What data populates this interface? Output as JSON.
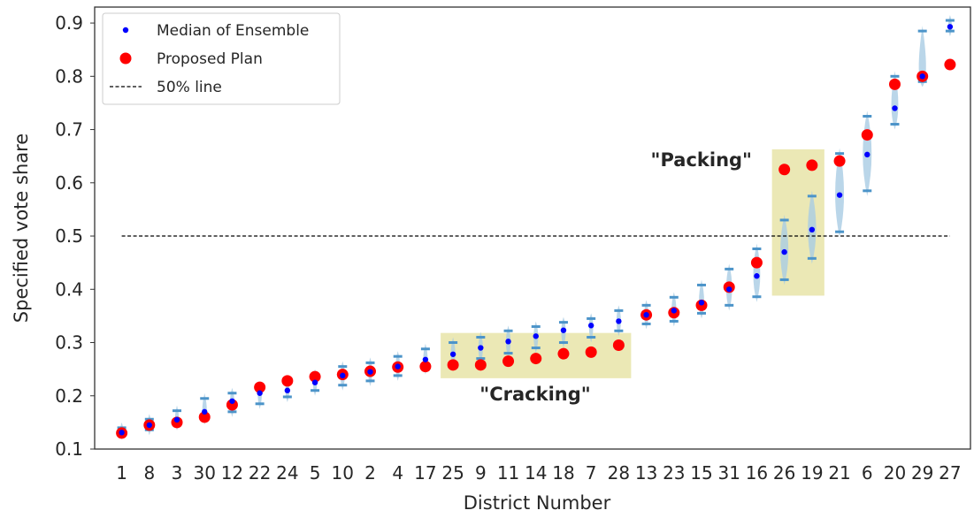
{
  "chart_data": {
    "type": "scatter",
    "title": "",
    "xlabel": "District Number",
    "ylabel": "Specified vote share",
    "ylim": [
      0.1,
      0.93
    ],
    "yticks": [
      0.1,
      0.2,
      0.3,
      0.4,
      0.5,
      0.6,
      0.7,
      0.8,
      0.9
    ],
    "grid": false,
    "legend_position": "top-left",
    "categories": [
      "1",
      "8",
      "3",
      "30",
      "12",
      "22",
      "24",
      "5",
      "10",
      "2",
      "4",
      "17",
      "25",
      "9",
      "11",
      "14",
      "18",
      "7",
      "28",
      "13",
      "23",
      "15",
      "31",
      "16",
      "26",
      "19",
      "21",
      "6",
      "20",
      "29",
      "27"
    ],
    "series": [
      {
        "name": "Median of Ensemble",
        "marker": "small-dot",
        "color": "#0000ff",
        "values": [
          0.131,
          0.145,
          0.155,
          0.17,
          0.19,
          0.205,
          0.21,
          0.225,
          0.238,
          0.245,
          0.255,
          0.268,
          0.278,
          0.29,
          0.302,
          0.312,
          0.323,
          0.332,
          0.34,
          0.352,
          0.36,
          0.375,
          0.4,
          0.425,
          0.47,
          0.512,
          0.577,
          0.653,
          0.74,
          0.8,
          0.893
        ]
      },
      {
        "name": "Proposed Plan",
        "marker": "large-dot",
        "color": "#ff0000",
        "values": [
          0.13,
          0.145,
          0.15,
          0.16,
          0.183,
          0.216,
          0.228,
          0.236,
          0.24,
          0.246,
          0.254,
          0.255,
          0.258,
          0.258,
          0.265,
          0.27,
          0.279,
          0.282,
          0.295,
          0.352,
          0.356,
          0.37,
          0.404,
          0.45,
          0.625,
          0.633,
          0.641,
          0.69,
          0.785,
          0.8,
          0.822
        ]
      }
    ],
    "ensemble_ranges": [
      [
        0.128,
        0.14
      ],
      [
        0.136,
        0.156
      ],
      [
        0.145,
        0.172
      ],
      [
        0.156,
        0.195
      ],
      [
        0.17,
        0.205
      ],
      [
        0.185,
        0.215
      ],
      [
        0.198,
        0.228
      ],
      [
        0.21,
        0.24
      ],
      [
        0.22,
        0.255
      ],
      [
        0.228,
        0.262
      ],
      [
        0.238,
        0.274
      ],
      [
        0.25,
        0.288
      ],
      [
        0.262,
        0.3
      ],
      [
        0.27,
        0.31
      ],
      [
        0.28,
        0.322
      ],
      [
        0.29,
        0.33
      ],
      [
        0.3,
        0.338
      ],
      [
        0.31,
        0.345
      ],
      [
        0.322,
        0.36
      ],
      [
        0.335,
        0.37
      ],
      [
        0.34,
        0.385
      ],
      [
        0.355,
        0.408
      ],
      [
        0.37,
        0.438
      ],
      [
        0.386,
        0.476
      ],
      [
        0.418,
        0.53
      ],
      [
        0.458,
        0.575
      ],
      [
        0.508,
        0.655
      ],
      [
        0.585,
        0.725
      ],
      [
        0.71,
        0.8
      ],
      [
        0.79,
        0.885
      ],
      [
        0.885,
        0.905
      ]
    ],
    "reference_lines": [
      {
        "name": "50% line",
        "y": 0.5,
        "style": "dashed",
        "color": "#000000"
      }
    ],
    "annotations": [
      {
        "text": "\"Packing\"",
        "districts": [
          "26",
          "19"
        ]
      },
      {
        "text": "\"Cracking\"",
        "districts": [
          "25",
          "9",
          "11",
          "14",
          "18",
          "7",
          "28"
        ]
      }
    ],
    "colors": {
      "violin": "#a9cce3",
      "violin_ticks": "#4c94c9",
      "highlight_box": "#e8e4a8",
      "axes": "#333333"
    }
  }
}
